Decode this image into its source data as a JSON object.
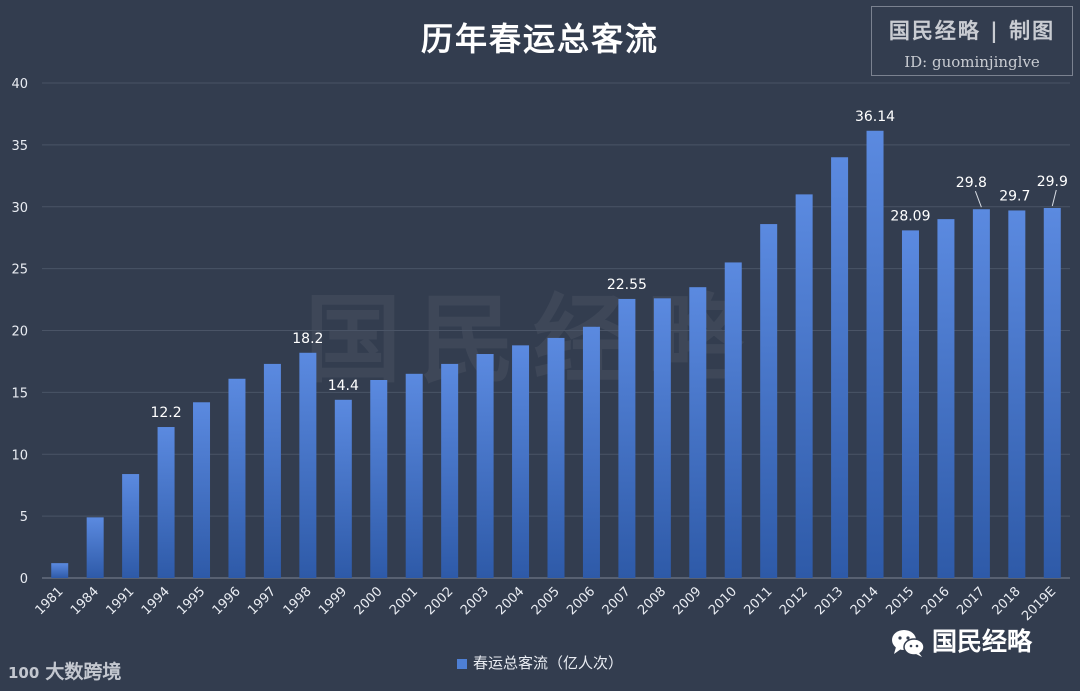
{
  "title": "历年春运总客流",
  "credit": {
    "line1": "国民经略 | 制图",
    "line2": "ID: guominjinglve"
  },
  "watermark": "国民经略",
  "legend": {
    "label": "春运总客流（亿人次）"
  },
  "source": {
    "logo_mark": "100",
    "label": "大数跨境"
  },
  "brand": {
    "label": "国民经略",
    "icon": "wechat-icon"
  },
  "colors": {
    "background": "#333d4f",
    "bar_top": "#5b8ae0",
    "bar_bottom": "#2e5aa8",
    "grid": "#4a5466"
  },
  "chart_data": {
    "type": "bar",
    "title": "历年春运总客流",
    "xlabel": "",
    "ylabel": "",
    "ylim": [
      0,
      40
    ],
    "yticks": [
      0,
      5,
      10,
      15,
      20,
      25,
      30,
      35,
      40
    ],
    "grid": true,
    "legend_position": "bottom",
    "categories": [
      "1981",
      "1984",
      "1991",
      "1994",
      "1995",
      "1996",
      "1997",
      "1998",
      "1999",
      "2000",
      "2001",
      "2002",
      "2003",
      "2004",
      "2005",
      "2006",
      "2007",
      "2008",
      "2009",
      "2010",
      "2011",
      "2012",
      "2013",
      "2014",
      "2015",
      "2016",
      "2017",
      "2018",
      "2019E"
    ],
    "series": [
      {
        "name": "春运总客流（亿人次）",
        "values": [
          1.2,
          4.9,
          8.4,
          12.2,
          14.2,
          16.1,
          17.3,
          18.2,
          14.4,
          16.0,
          16.5,
          17.3,
          18.1,
          18.8,
          19.4,
          20.3,
          22.55,
          22.6,
          23.5,
          25.5,
          28.6,
          31.0,
          34.0,
          36.14,
          28.09,
          29.0,
          29.8,
          29.7,
          29.9
        ]
      }
    ],
    "data_labels": [
      {
        "index": 3,
        "text": "12.2"
      },
      {
        "index": 7,
        "text": "18.2"
      },
      {
        "index": 8,
        "text": "14.4"
      },
      {
        "index": 16,
        "text": "22.55"
      },
      {
        "index": 23,
        "text": "36.14"
      },
      {
        "index": 24,
        "text": "28.09"
      },
      {
        "index": 26,
        "text": "29.8"
      },
      {
        "index": 27,
        "text": "29.7"
      },
      {
        "index": 28,
        "text": "29.9"
      }
    ]
  }
}
